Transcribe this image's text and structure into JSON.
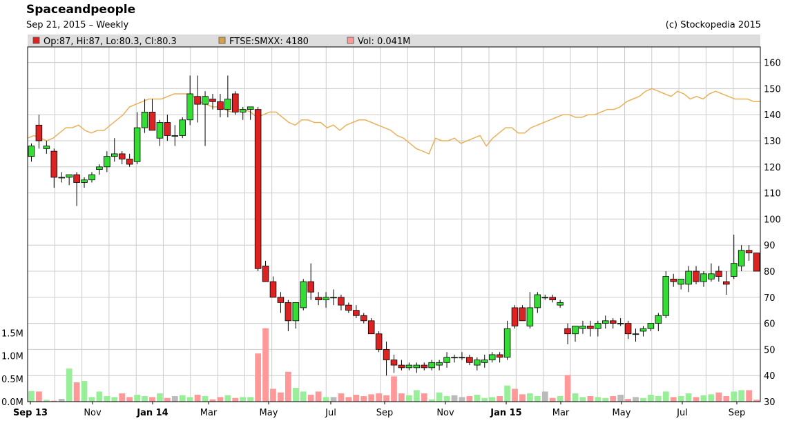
{
  "header": {
    "title": "Spaceandpeople",
    "subtitle": "Sep 21, 2015 – Weekly",
    "credit": "(c) Stockopedia 2015"
  },
  "legend": [
    {
      "label": "Op:87, Hi:87, Lo:80.3, Cl:80.3",
      "color": "#dd2222"
    },
    {
      "label": "FTSE:SMXX: 4180",
      "color": "#d4a04a"
    },
    {
      "label": "Vol: 0.041M",
      "color": "#ff9999"
    }
  ],
  "chart_data": {
    "type": "candlestick",
    "price_axis": {
      "ticks": [
        "160",
        "150",
        "140",
        "130",
        "120",
        "110",
        "100",
        "90",
        "80",
        "70",
        "60",
        "50",
        "40",
        "30"
      ],
      "range": [
        30,
        165
      ]
    },
    "volume_axis": {
      "ticks": [
        "1.5M",
        "1.0M",
        "0.5M",
        "0.0M"
      ],
      "range": [
        0,
        1.5
      ]
    },
    "x_labels": [
      "Sep 13",
      "Nov",
      "Jan 14",
      "Mar",
      "May",
      "Jul",
      "Sep",
      "Nov",
      "Jan 15",
      "Mar",
      "May",
      "Jul",
      "Sep"
    ],
    "bold_x_labels": [
      "Sep 13",
      "Jan 14",
      "Jan 15"
    ],
    "grid": true,
    "colors": {
      "up": "#33dd33",
      "down": "#dd2222",
      "index_line": "#e8b15a",
      "vol_up": "#99ee99",
      "vol_down": "#ff9999",
      "vol_flat": "#bbbbbb",
      "grid": "#cccccc"
    },
    "ohlc": [
      [
        124,
        129,
        122,
        128
      ],
      [
        136,
        140,
        127,
        130
      ],
      [
        127,
        130,
        125,
        128
      ],
      [
        126,
        127,
        112,
        116
      ],
      [
        116,
        118,
        114,
        116
      ],
      [
        116,
        117,
        113,
        117
      ],
      [
        117,
        118,
        105,
        114
      ],
      [
        114,
        116,
        112,
        115
      ],
      [
        115,
        118,
        114,
        117
      ],
      [
        119,
        121,
        117,
        120
      ],
      [
        120,
        126,
        118,
        124
      ],
      [
        124,
        131,
        122,
        125
      ],
      [
        125,
        126,
        121,
        123
      ],
      [
        123,
        125,
        120,
        121
      ],
      [
        122,
        141,
        121,
        135
      ],
      [
        135,
        146,
        133,
        141
      ],
      [
        141,
        146,
        134,
        134
      ],
      [
        131,
        138,
        128,
        137
      ],
      [
        137,
        140,
        130,
        132
      ],
      [
        132,
        136,
        128,
        132
      ],
      [
        132,
        139,
        131,
        138
      ],
      [
        138,
        155,
        136,
        148
      ],
      [
        147,
        155,
        137,
        144
      ],
      [
        144,
        149,
        128,
        147
      ],
      [
        146,
        148,
        142,
        145
      ],
      [
        145,
        148,
        139,
        142
      ],
      [
        142,
        155,
        139,
        146
      ],
      [
        148,
        149,
        140,
        141
      ],
      [
        141,
        143,
        138,
        142
      ],
      [
        142,
        143,
        138,
        143
      ],
      [
        142,
        143,
        80,
        81
      ],
      [
        82,
        84,
        76,
        76
      ],
      [
        76,
        78,
        70,
        70
      ],
      [
        70,
        72,
        64,
        68
      ],
      [
        68,
        69,
        57,
        61
      ],
      [
        61,
        68,
        58,
        68
      ],
      [
        66,
        77,
        65,
        76
      ],
      [
        76,
        83,
        69,
        72
      ],
      [
        70,
        72,
        67,
        69
      ],
      [
        69,
        72,
        66,
        70
      ],
      [
        70,
        73,
        67,
        70
      ],
      [
        70,
        71,
        65,
        67
      ],
      [
        67,
        68,
        64,
        65
      ],
      [
        65,
        67,
        62,
        63
      ],
      [
        63,
        64,
        60,
        61
      ],
      [
        61,
        62,
        57,
        56
      ],
      [
        56,
        57,
        49,
        50
      ],
      [
        50,
        53,
        40,
        46
      ],
      [
        46,
        48,
        41,
        44
      ],
      [
        44,
        46,
        42,
        43
      ],
      [
        43,
        45,
        42,
        44
      ],
      [
        43,
        45,
        41,
        44
      ],
      [
        44,
        45,
        42,
        43
      ],
      [
        43,
        46,
        42,
        45
      ],
      [
        44,
        46,
        42,
        45
      ],
      [
        45,
        49,
        43,
        47
      ],
      [
        47,
        48,
        45,
        47
      ],
      [
        47,
        49,
        46,
        47
      ],
      [
        47,
        48,
        44,
        45
      ],
      [
        44,
        47,
        42,
        46
      ],
      [
        45,
        48,
        43,
        46
      ],
      [
        46,
        49,
        45,
        48
      ],
      [
        48,
        49,
        45,
        47
      ],
      [
        47,
        61,
        46,
        58
      ],
      [
        66,
        67,
        58,
        59
      ],
      [
        66,
        67,
        61,
        61
      ],
      [
        59,
        72,
        58,
        66
      ],
      [
        66,
        72,
        64,
        71
      ],
      [
        70,
        71,
        69,
        70
      ],
      [
        70,
        71,
        68,
        69
      ],
      [
        67,
        69,
        66,
        68
      ],
      [
        58,
        60,
        52,
        56
      ],
      [
        56,
        58,
        53,
        59
      ],
      [
        58,
        61,
        56,
        59
      ],
      [
        59,
        61,
        55,
        58
      ],
      [
        58,
        61,
        55,
        60
      ],
      [
        60,
        63,
        58,
        61
      ],
      [
        61,
        62,
        58,
        60
      ],
      [
        60,
        62,
        59,
        60
      ],
      [
        60,
        61,
        54,
        56
      ],
      [
        56,
        58,
        53,
        56
      ],
      [
        57,
        59,
        55,
        58
      ],
      [
        58,
        60,
        57,
        60
      ],
      [
        60,
        64,
        57,
        63
      ],
      [
        63,
        80,
        62,
        78
      ],
      [
        77,
        79,
        74,
        76
      ],
      [
        75,
        77,
        73,
        77
      ],
      [
        75,
        82,
        72,
        80
      ],
      [
        80,
        82,
        75,
        76
      ],
      [
        76,
        80,
        74,
        79
      ],
      [
        77,
        83,
        76,
        79
      ],
      [
        80,
        82,
        76,
        78
      ],
      [
        76,
        80,
        71,
        75
      ],
      [
        78,
        94,
        77,
        83
      ],
      [
        82,
        90,
        80,
        88
      ],
      [
        88,
        90,
        84,
        87
      ],
      [
        87,
        87,
        80,
        80
      ]
    ],
    "volume": [
      0.23,
      0.22,
      0.04,
      0.02,
      0.06,
      0.72,
      0.42,
      0.45,
      0.1,
      0.22,
      0.12,
      0.1,
      0.18,
      0.1,
      0.15,
      0.12,
      0.1,
      0.18,
      0.08,
      0.12,
      0.14,
      0.1,
      0.15,
      0.12,
      0.05,
      0.1,
      0.14,
      0.08,
      0.1,
      0.1,
      1.05,
      1.6,
      0.28,
      0.2,
      0.65,
      0.3,
      0.22,
      0.15,
      0.22,
      0.1,
      0.1,
      0.18,
      0.1,
      0.15,
      0.12,
      0.16,
      0.18,
      0.14,
      0.55,
      0.18,
      0.14,
      0.25,
      0.18,
      0.05,
      0.2,
      0.12,
      0.14,
      0.1,
      0.12,
      0.15,
      0.08,
      0.1,
      0.12,
      0.35,
      0.28,
      0.16,
      0.18,
      0.12,
      0.22,
      0.08,
      0.12,
      0.58,
      0.18,
      0.1,
      0.12,
      0.1,
      0.08,
      0.12,
      0.15,
      0.06,
      0.1,
      0.08,
      0.15,
      0.12,
      0.22,
      0.1,
      0.12,
      0.18,
      0.1,
      0.14,
      0.16,
      0.2,
      0.12,
      0.22,
      0.25,
      0.25,
      0.041
    ],
    "index_line": [
      131,
      132,
      131,
      130,
      131,
      133,
      135,
      135,
      136,
      134,
      133,
      134,
      134,
      136,
      138,
      140,
      143,
      144,
      145,
      146,
      146,
      146,
      147,
      148,
      148,
      148,
      147,
      145,
      144,
      143,
      143,
      142,
      141,
      142,
      142,
      141,
      139,
      140,
      141,
      141,
      139,
      137,
      136,
      138,
      138,
      137,
      137,
      135,
      136,
      134,
      136,
      137,
      138,
      138,
      137,
      136,
      135,
      134,
      132,
      131,
      129,
      127,
      126,
      125,
      131,
      130,
      130,
      131,
      129,
      130,
      131,
      132,
      128,
      131,
      133,
      135,
      135,
      133,
      133,
      135,
      136,
      137,
      138,
      139,
      140,
      140,
      139,
      139,
      140,
      140,
      141,
      142,
      142,
      143,
      145,
      146,
      147,
      149,
      150,
      149,
      148,
      147,
      149,
      148,
      146,
      147,
      146,
      148,
      149,
      148,
      147,
      146,
      146,
      146,
      145,
      145
    ]
  }
}
